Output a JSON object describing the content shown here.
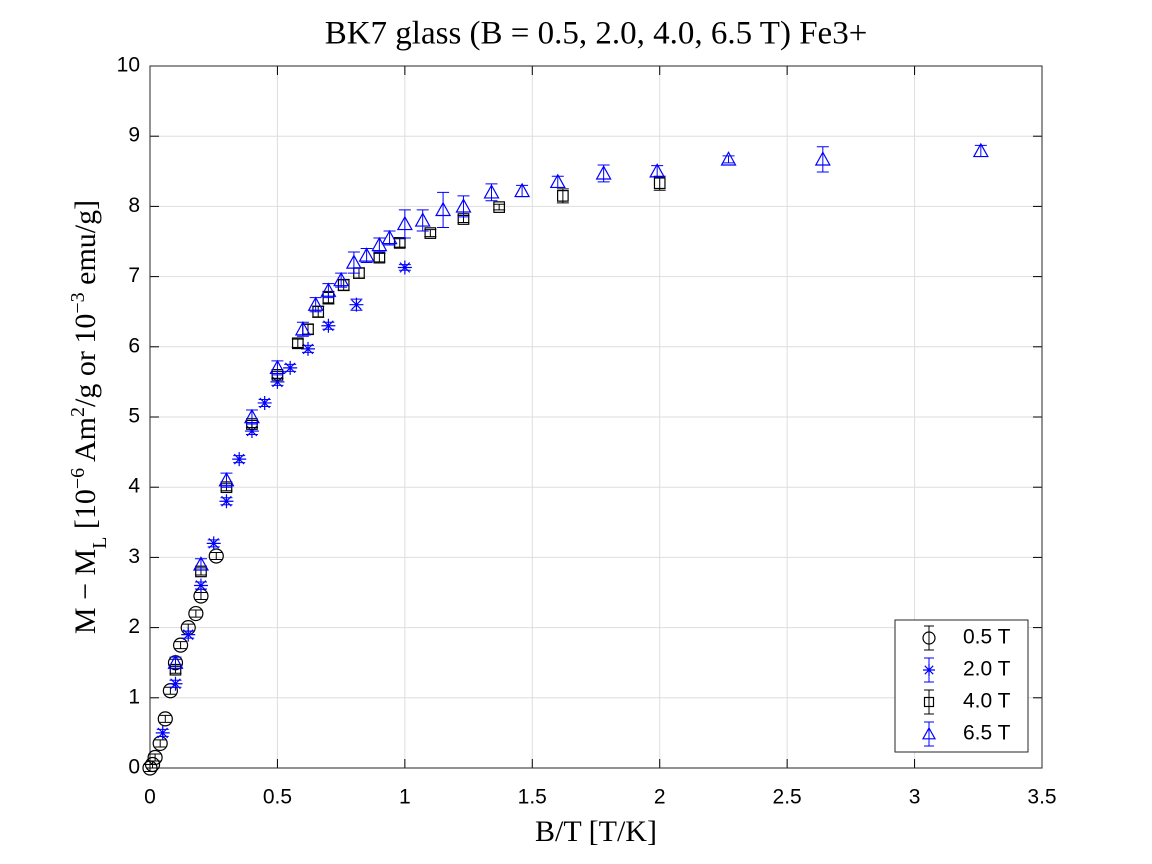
{
  "chart_data": {
    "type": "errorbar-scatter",
    "title": "BK7 glass (B = 0.5, 2.0, 4.0, 6.5 T) Fe3+",
    "xlabel": "B/T [T/K]",
    "ylabel_parts": [
      {
        "text": "M − M"
      },
      {
        "text": "L",
        "shift": "sub"
      },
      {
        "text": " [10"
      },
      {
        "text": "−6",
        "shift": "super"
      },
      {
        "text": " Am"
      },
      {
        "text": "2",
        "shift": "super"
      },
      {
        "text": "/g or 10"
      },
      {
        "text": "−3",
        "shift": "super"
      },
      {
        "text": " emu/g]"
      }
    ],
    "xlim": [
      0,
      3.5
    ],
    "xticks": [
      0,
      0.5,
      1,
      1.5,
      2,
      2.5,
      3,
      3.5
    ],
    "ylim": [
      0,
      10
    ],
    "yticks": [
      0,
      1,
      2,
      3,
      4,
      5,
      6,
      7,
      8,
      9,
      10
    ],
    "grid": true,
    "legend": "lower right",
    "series": [
      {
        "name": "0.5 T",
        "color": "#000000",
        "marker": "circle",
        "x": [
          0,
          0.01,
          0.02,
          0.04,
          0.06,
          0.08,
          0.1,
          0.12,
          0.15,
          0.18,
          0.2,
          0.26
        ],
        "values": [
          0,
          0.05,
          0.15,
          0.35,
          0.7,
          1.1,
          1.5,
          1.75,
          2.0,
          2.2,
          2.45,
          3.02
        ],
        "errors": [
          0.05,
          0.05,
          0.05,
          0.05,
          0.05,
          0.05,
          0.05,
          0.05,
          0.05,
          0.05,
          0.05,
          0.05
        ]
      },
      {
        "name": "2.0 T",
        "color": "#0000ff",
        "marker": "asterisk",
        "x": [
          0.05,
          0.1,
          0.15,
          0.2,
          0.25,
          0.3,
          0.35,
          0.4,
          0.45,
          0.5,
          0.55,
          0.62,
          0.7,
          0.81,
          1.0
        ],
        "values": [
          0.5,
          1.2,
          1.9,
          2.6,
          3.2,
          3.8,
          4.4,
          4.8,
          5.2,
          5.5,
          5.7,
          5.97,
          6.3,
          6.6,
          7.13
        ],
        "errors": [
          0.05,
          0.05,
          0.05,
          0.05,
          0.05,
          0.05,
          0.05,
          0.05,
          0.05,
          0.05,
          0.05,
          0.05,
          0.05,
          0.08,
          0.04
        ]
      },
      {
        "name": "4.0 T",
        "color": "#000000",
        "marker": "square",
        "x": [
          0.1,
          0.2,
          0.3,
          0.4,
          0.5,
          0.58,
          0.62,
          0.66,
          0.7,
          0.76,
          0.82,
          0.9,
          0.98,
          1.1,
          1.23,
          1.37,
          1.62,
          2.0
        ],
        "values": [
          1.4,
          2.8,
          4.0,
          4.9,
          5.6,
          6.05,
          6.25,
          6.5,
          6.7,
          6.88,
          7.05,
          7.27,
          7.48,
          7.62,
          7.82,
          7.99,
          8.15,
          8.33
        ],
        "errors": [
          0.05,
          0.05,
          0.05,
          0.05,
          0.05,
          0.06,
          0.07,
          0.08,
          0.09,
          0.08,
          0.07,
          0.06,
          0.06,
          0.05,
          0.05,
          0.04,
          0.1,
          0.1
        ]
      },
      {
        "name": "6.5 T",
        "color": "#0000ff",
        "marker": "triangle",
        "x": [
          0.1,
          0.2,
          0.3,
          0.4,
          0.5,
          0.6,
          0.65,
          0.7,
          0.75,
          0.8,
          0.85,
          0.9,
          0.94,
          1.0,
          1.07,
          1.15,
          1.23,
          1.34,
          1.46,
          1.6,
          1.78,
          1.99,
          2.27,
          2.64,
          3.26
        ],
        "values": [
          1.5,
          2.9,
          4.1,
          5.0,
          5.7,
          6.25,
          6.6,
          6.8,
          6.95,
          7.2,
          7.3,
          7.45,
          7.55,
          7.75,
          7.8,
          7.95,
          8.0,
          8.2,
          8.22,
          8.35,
          8.47,
          8.5,
          8.67,
          8.67,
          8.79
        ],
        "errors": [
          0.08,
          0.08,
          0.1,
          0.1,
          0.1,
          0.1,
          0.1,
          0.1,
          0.1,
          0.15,
          0.1,
          0.1,
          0.1,
          0.2,
          0.15,
          0.25,
          0.15,
          0.12,
          0.08,
          0.08,
          0.12,
          0.08,
          0.05,
          0.18,
          0.08
        ]
      }
    ]
  }
}
